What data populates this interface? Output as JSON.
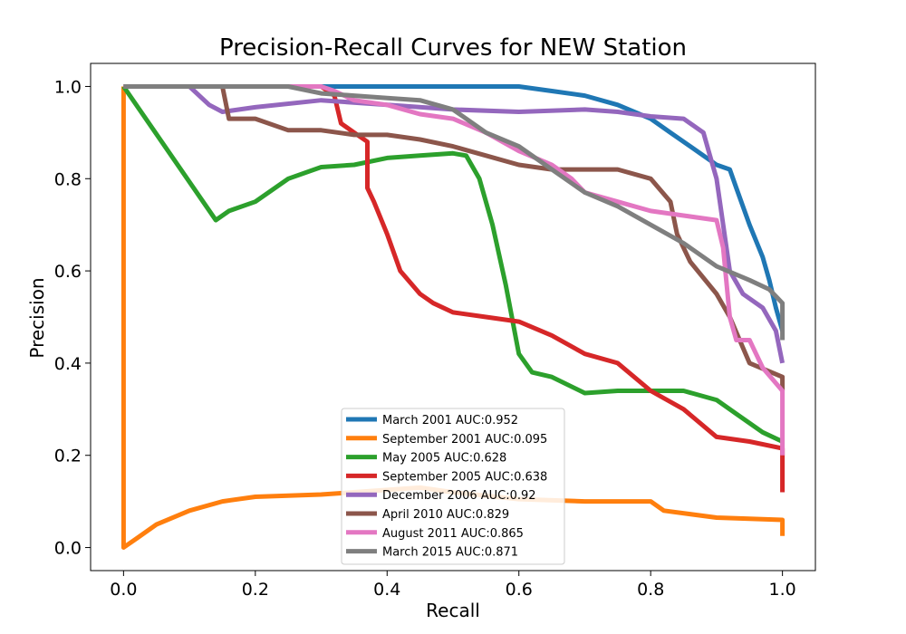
{
  "chart_data": {
    "type": "line",
    "title": "Precision-Recall Curves for NEW Station",
    "xlabel": "Recall",
    "ylabel": "Precision",
    "xlim": [
      -0.05,
      1.05
    ],
    "ylim": [
      -0.05,
      1.05
    ],
    "xticks": [
      "0.0",
      "0.2",
      "0.4",
      "0.6",
      "0.8",
      "1.0"
    ],
    "yticks": [
      "0.0",
      "0.2",
      "0.4",
      "0.6",
      "0.8",
      "1.0"
    ],
    "grid": false,
    "legend_position": "lower-center",
    "series": [
      {
        "name": "March 2001 AUC:0.952",
        "color": "#1f77b4",
        "x": [
          0,
          0.3,
          0.5,
          0.6,
          0.65,
          0.7,
          0.75,
          0.8,
          0.83,
          0.86,
          0.88,
          0.9,
          0.92,
          0.93,
          0.95,
          0.97,
          0.98,
          0.99,
          1.0
        ],
        "y": [
          1.0,
          1.0,
          1.0,
          1.0,
          0.99,
          0.98,
          0.96,
          0.93,
          0.9,
          0.87,
          0.85,
          0.83,
          0.82,
          0.78,
          0.7,
          0.63,
          0.58,
          0.52,
          0.47
        ]
      },
      {
        "name": "September 2001 AUC:0.095",
        "color": "#ff7f0e",
        "x": [
          0,
          0,
          0.02,
          0.05,
          0.1,
          0.15,
          0.2,
          0.3,
          0.4,
          0.45,
          0.5,
          0.6,
          0.7,
          0.8,
          0.82,
          0.9,
          1.0,
          1.0
        ],
        "y": [
          1.0,
          0.0,
          0.02,
          0.05,
          0.08,
          0.1,
          0.11,
          0.115,
          0.125,
          0.13,
          0.12,
          0.105,
          0.1,
          0.1,
          0.08,
          0.065,
          0.06,
          0.025
        ]
      },
      {
        "name": "May 2005 AUC:0.628",
        "color": "#2ca02c",
        "x": [
          0,
          0.14,
          0.16,
          0.2,
          0.25,
          0.3,
          0.35,
          0.4,
          0.45,
          0.5,
          0.52,
          0.54,
          0.56,
          0.58,
          0.6,
          0.62,
          0.65,
          0.7,
          0.75,
          0.8,
          0.85,
          0.9,
          0.93,
          0.97,
          1.0
        ],
        "y": [
          1.0,
          0.71,
          0.73,
          0.75,
          0.8,
          0.825,
          0.83,
          0.845,
          0.85,
          0.855,
          0.85,
          0.8,
          0.7,
          0.57,
          0.42,
          0.38,
          0.37,
          0.335,
          0.34,
          0.34,
          0.34,
          0.32,
          0.29,
          0.25,
          0.23
        ]
      },
      {
        "name": "September 2005 AUC:0.638",
        "color": "#d62728",
        "x": [
          0,
          0.3,
          0.32,
          0.33,
          0.35,
          0.37,
          0.37,
          0.38,
          0.4,
          0.42,
          0.45,
          0.47,
          0.5,
          0.55,
          0.6,
          0.65,
          0.7,
          0.75,
          0.8,
          0.85,
          0.9,
          0.95,
          1.0,
          1.0
        ],
        "y": [
          1.0,
          1.0,
          0.98,
          0.92,
          0.9,
          0.88,
          0.78,
          0.75,
          0.68,
          0.6,
          0.55,
          0.53,
          0.51,
          0.5,
          0.49,
          0.46,
          0.42,
          0.4,
          0.34,
          0.3,
          0.24,
          0.23,
          0.215,
          0.12
        ]
      },
      {
        "name": "December 2006 AUC:0.92",
        "color": "#9467bd",
        "x": [
          0,
          0.1,
          0.13,
          0.15,
          0.2,
          0.3,
          0.4,
          0.5,
          0.6,
          0.7,
          0.75,
          0.8,
          0.85,
          0.88,
          0.89,
          0.9,
          0.91,
          0.92,
          0.94,
          0.97,
          0.99,
          1.0
        ],
        "y": [
          1.0,
          1.0,
          0.96,
          0.945,
          0.955,
          0.97,
          0.96,
          0.95,
          0.945,
          0.95,
          0.945,
          0.935,
          0.93,
          0.9,
          0.85,
          0.8,
          0.7,
          0.6,
          0.55,
          0.52,
          0.47,
          0.4
        ]
      },
      {
        "name": "April 2010 AUC:0.829",
        "color": "#8c564b",
        "x": [
          0,
          0.15,
          0.16,
          0.2,
          0.25,
          0.3,
          0.35,
          0.4,
          0.45,
          0.5,
          0.55,
          0.6,
          0.65,
          0.7,
          0.75,
          0.8,
          0.83,
          0.84,
          0.86,
          0.9,
          0.92,
          0.95,
          1.0,
          1.0
        ],
        "y": [
          1.0,
          1.0,
          0.93,
          0.93,
          0.905,
          0.905,
          0.895,
          0.895,
          0.885,
          0.87,
          0.85,
          0.83,
          0.82,
          0.82,
          0.82,
          0.8,
          0.75,
          0.68,
          0.62,
          0.55,
          0.5,
          0.4,
          0.37,
          0.34
        ]
      },
      {
        "name": "August 2011 AUC:0.865",
        "color": "#e377c2",
        "x": [
          0,
          0.3,
          0.32,
          0.35,
          0.4,
          0.45,
          0.5,
          0.55,
          0.6,
          0.65,
          0.68,
          0.7,
          0.75,
          0.8,
          0.85,
          0.9,
          0.91,
          0.92,
          0.93,
          0.95,
          0.97,
          1.0,
          1.0
        ],
        "y": [
          1.0,
          1.0,
          0.99,
          0.97,
          0.96,
          0.94,
          0.93,
          0.9,
          0.86,
          0.83,
          0.8,
          0.77,
          0.75,
          0.73,
          0.72,
          0.71,
          0.65,
          0.5,
          0.45,
          0.45,
          0.39,
          0.34,
          0.2
        ]
      },
      {
        "name": "March 2015 AUC:0.871",
        "color": "#7f7f7f",
        "x": [
          0,
          0.25,
          0.3,
          0.35,
          0.4,
          0.45,
          0.5,
          0.55,
          0.6,
          0.65,
          0.7,
          0.75,
          0.8,
          0.85,
          0.9,
          0.95,
          0.98,
          1.0,
          1.0
        ],
        "y": [
          1.0,
          1.0,
          0.985,
          0.98,
          0.975,
          0.97,
          0.95,
          0.9,
          0.87,
          0.82,
          0.77,
          0.74,
          0.7,
          0.66,
          0.61,
          0.58,
          0.56,
          0.53,
          0.45
        ]
      }
    ]
  }
}
